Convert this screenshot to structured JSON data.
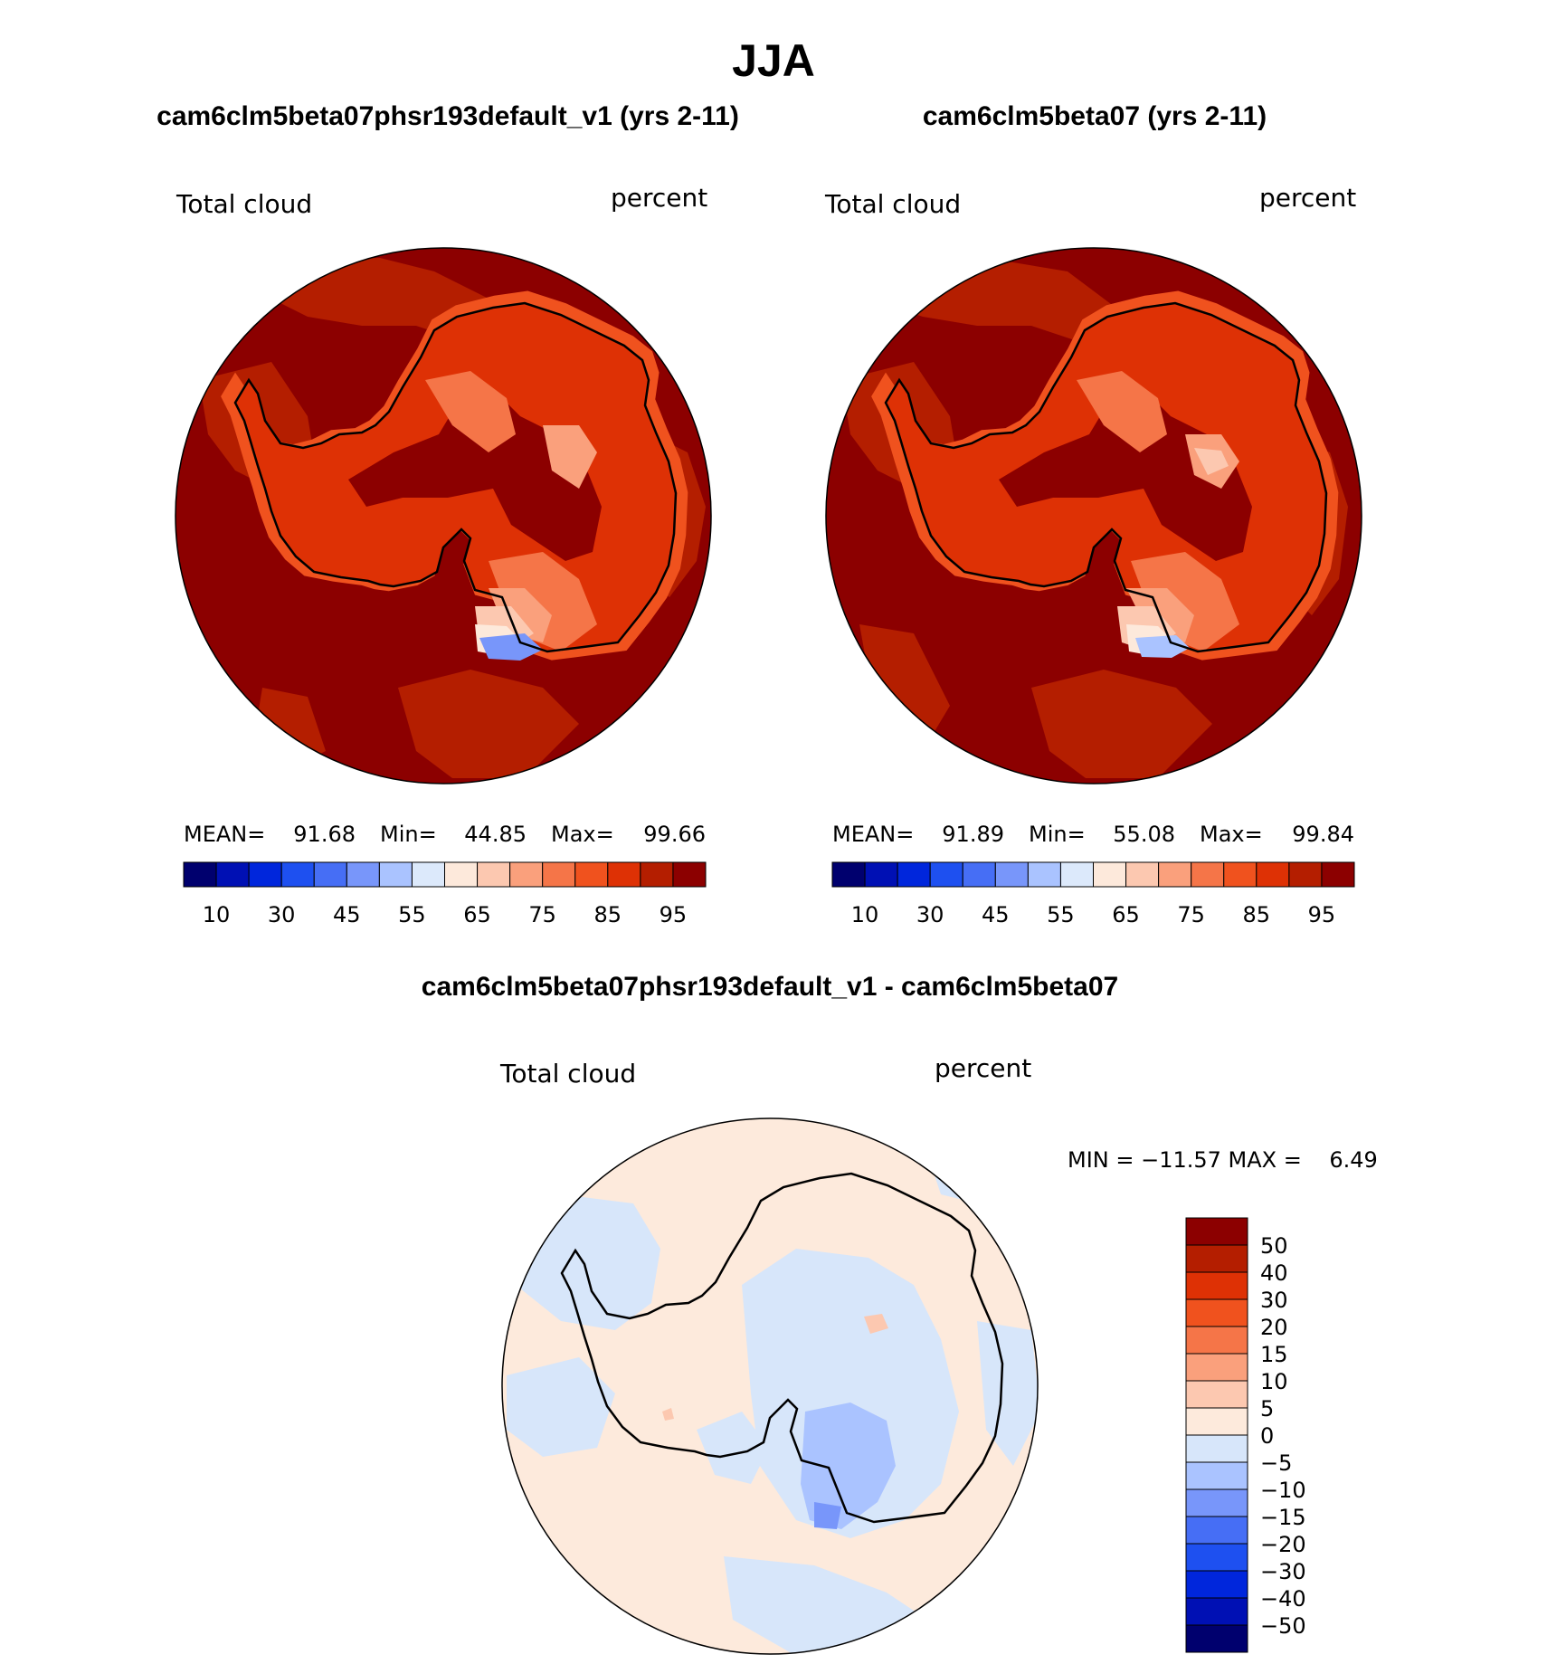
{
  "title": "JJA",
  "colors": {
    "seq": [
      "#00006e",
      "#0010b4",
      "#0026dc",
      "#1e50f0",
      "#466ef5",
      "#7896fa",
      "#aac3ff",
      "#dce9fb",
      "#fde9db",
      "#fcc8b0",
      "#faa07c",
      "#f57548",
      "#f0521e",
      "#de3105",
      "#b41e00",
      "#8c0000"
    ],
    "diff": [
      "#00006e",
      "#0010b4",
      "#0026dc",
      "#1e50f0",
      "#466ef5",
      "#7896fa",
      "#aac3ff",
      "#d7e6fa",
      "#fdeadc",
      "#fcc8b0",
      "#faa07c",
      "#f57548",
      "#f0521e",
      "#de3105",
      "#b41e00",
      "#8c0000"
    ]
  },
  "panels": {
    "left": {
      "title": "cam6clm5beta07phsr193default_v1 (yrs 2-11)",
      "variable": "Total cloud",
      "units": "percent",
      "stats": {
        "mean_label": "MEAN=",
        "mean": "91.68",
        "min_label": "Min=",
        "min": "44.85",
        "max_label": "Max=",
        "max": "99.66"
      },
      "colorbar_ticks": [
        "10",
        "30",
        "45",
        "55",
        "65",
        "75",
        "85",
        "95"
      ]
    },
    "right": {
      "title": "cam6clm5beta07 (yrs 2-11)",
      "variable": "Total cloud",
      "units": "percent",
      "stats": {
        "mean_label": "MEAN=",
        "mean": "91.89",
        "min_label": "Min=",
        "min": "55.08",
        "max_label": "Max=",
        "max": "99.84"
      },
      "colorbar_ticks": [
        "10",
        "30",
        "45",
        "55",
        "65",
        "75",
        "85",
        "95"
      ]
    },
    "diff": {
      "title": "cam6clm5beta07phsr193default_v1 - cam6clm5beta07",
      "variable": "Total cloud",
      "units": "percent",
      "minmax": "MIN = −11.57 MAX =    6.49",
      "colorbar_ticks": [
        "50",
        "40",
        "30",
        "20",
        "15",
        "10",
        "5",
        "0",
        "−5",
        "−10",
        "−15",
        "−20",
        "−30",
        "−40",
        "−50"
      ]
    }
  }
}
